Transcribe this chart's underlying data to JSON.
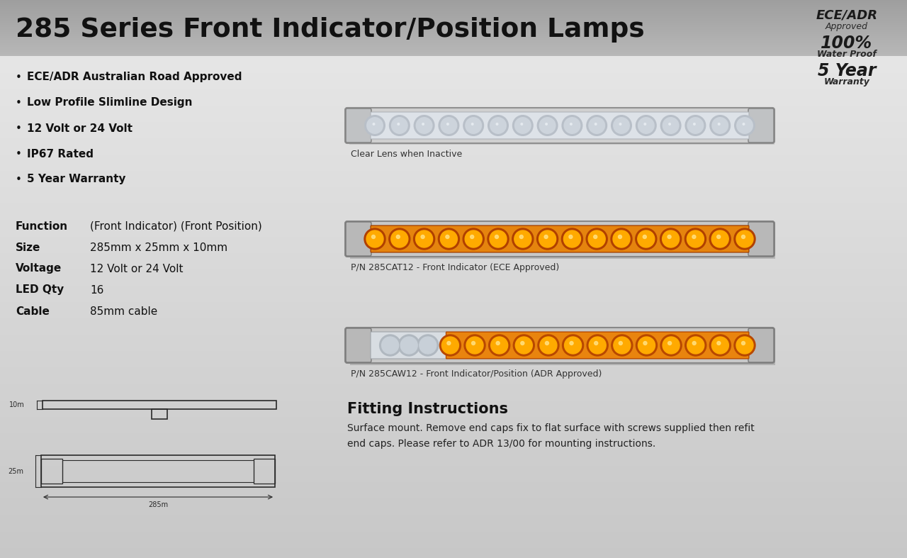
{
  "title": "285 Series Front Indicator/Position Lamps",
  "bullet_points": [
    "ECE/ADR Australian Road Approved",
    "Low Profile Slimline Design",
    "12 Volt or 24 Volt",
    "IP67 Rated",
    "5 Year Warranty"
  ],
  "spec_labels": [
    "Function",
    "Size",
    "Voltage",
    "LED Qty",
    "Cable"
  ],
  "spec_values": [
    "(Front Indicator) (Front Position)",
    "285mm x 25mm x 10mm",
    "12 Volt or 24 Volt",
    "16",
    "85mm cable"
  ],
  "badge_line1": "ECE/ADR",
  "badge_line2": "Approved",
  "badge_line3": "100%",
  "badge_line4": "Water Proof",
  "badge_line5": "5 Year",
  "badge_line6": "Warranty",
  "lamp1_caption": "Clear Lens when Inactive",
  "lamp2_caption": "P/N 285CAT12 - Front Indicator (ECE Approved)",
  "lamp3_caption": "P/N 285CAW12 - Front Indicator/Position (ADR Approved)",
  "fitting_title": "Fitting Instructions",
  "fitting_text": "Surface mount. Remove end caps fix to flat surface with screws supplied then refit\nend caps. Please refer to ADR 13/00 for mounting instructions."
}
